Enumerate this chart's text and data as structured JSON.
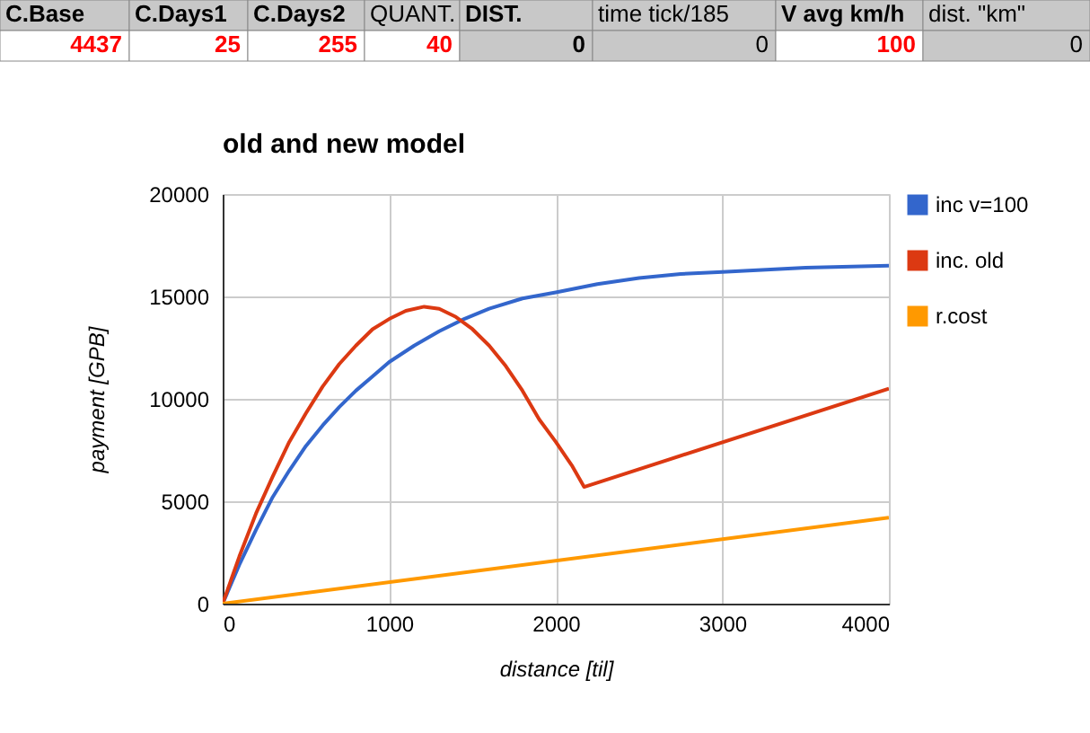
{
  "chart_data": {
    "type": "line",
    "title": "old and new model",
    "xlabel": "distance [til]",
    "ylabel": "payment [GPB]",
    "xlim": [
      0,
      4000
    ],
    "xticks": [
      0,
      1000,
      2000,
      3000,
      4000
    ],
    "ylim": [
      0,
      20000
    ],
    "yticks": [
      0,
      5000,
      10000,
      15000,
      20000
    ],
    "grid": true,
    "legend": "top right",
    "line_style": "solid",
    "marker": "none",
    "annotations": [
      "C.Base",
      "C.Days1",
      "C.Days2",
      "QUANT.",
      "DIST.",
      "time tick/185",
      "V avg km/h",
      "dist. \"km\"",
      "4437",
      "25",
      "255",
      "40",
      "0",
      "0",
      "100",
      "0"
    ],
    "series": [
      {
        "name": "inc v=100",
        "color": "#3366cc",
        "x": [
          0,
          100,
          200,
          300,
          400,
          500,
          600,
          700,
          800,
          900,
          1000,
          1150,
          1300,
          1450,
          1600,
          1800,
          2000,
          2250,
          2500,
          2750,
          3000,
          3500,
          4000
        ],
        "values": [
          0,
          1900,
          3600,
          5200,
          6500,
          7700,
          8700,
          9600,
          10400,
          11100,
          11800,
          12600,
          13300,
          13900,
          14400,
          14900,
          15200,
          15600,
          15900,
          16100,
          16200,
          16400,
          16500
        ]
      },
      {
        "name": "inc. old",
        "color": "#dc3912",
        "x": [
          0,
          100,
          200,
          300,
          400,
          500,
          600,
          700,
          800,
          900,
          1000,
          1100,
          1210,
          1300,
          1400,
          1500,
          1600,
          1700,
          1800,
          1900,
          2000,
          2100,
          2170,
          4000
        ],
        "values": [
          0,
          2300,
          4400,
          6200,
          7900,
          9300,
          10600,
          11700,
          12600,
          13400,
          13900,
          14300,
          14500,
          14400,
          14000,
          13400,
          12600,
          11600,
          10400,
          9000,
          7900,
          6700,
          5700,
          10500
        ]
      },
      {
        "name": "r.cost",
        "color": "#ff9900",
        "x": [
          0,
          4000
        ],
        "values": [
          0,
          4200
        ]
      }
    ]
  }
}
